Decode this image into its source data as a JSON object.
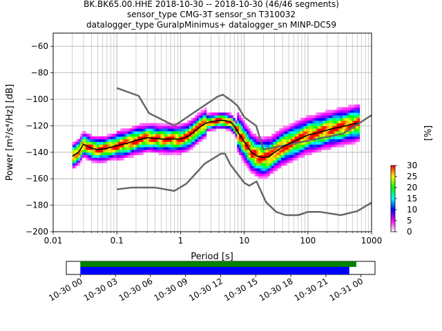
{
  "chart_data": {
    "type": "scatter",
    "title": {
      "line1": "BK.BK65.00.HHE   2018-10-30 -- 2018-10-30  (46/46 segments)",
      "line2": "sensor_type CMG-3T sensor_sn T310032",
      "line3": "datalogger_type GuralpMinimus+ datalogger_sn MINP-DC59"
    },
    "xlabel": "Period [s]",
    "ylabel": "Power [m²/s⁴/Hz] [dB]",
    "xscale": "log",
    "xlim": [
      0.01,
      1000
    ],
    "ylim": [
      -200,
      -50
    ],
    "grid": true,
    "xticks": [
      {
        "v": 0.01,
        "label": "0.01"
      },
      {
        "v": 0.1,
        "label": "0.1"
      },
      {
        "v": 1,
        "label": "1"
      },
      {
        "v": 10,
        "label": "10"
      },
      {
        "v": 100,
        "label": "100"
      },
      {
        "v": 1000,
        "label": "1000"
      }
    ],
    "yticks": [
      -60,
      -80,
      -100,
      -120,
      -140,
      -160,
      -180,
      -200
    ],
    "noise_model_high": [
      [
        0.1,
        -91.5
      ],
      [
        0.22,
        -97.4
      ],
      [
        0.32,
        -110.5
      ],
      [
        0.8,
        -120.0
      ],
      [
        3.8,
        -98.0
      ],
      [
        4.6,
        -96.5
      ],
      [
        6.3,
        -101.0
      ],
      [
        7.9,
        -105.0
      ],
      [
        10.0,
        -113.5
      ],
      [
        15.4,
        -120.0
      ],
      [
        20.0,
        -138.0
      ],
      [
        354.8,
        -126.0
      ],
      [
        1000,
        -112.0
      ]
    ],
    "noise_model_low": [
      [
        0.1,
        -168.0
      ],
      [
        0.17,
        -166.7
      ],
      [
        0.4,
        -166.7
      ],
      [
        0.8,
        -169.2
      ],
      [
        1.24,
        -163.7
      ],
      [
        2.4,
        -148.6
      ],
      [
        4.3,
        -141.1
      ],
      [
        5.0,
        -141.1
      ],
      [
        6.0,
        -149.0
      ],
      [
        10.0,
        -163.0
      ],
      [
        12.0,
        -165.3
      ],
      [
        15.6,
        -162.0
      ],
      [
        21.9,
        -177.5
      ],
      [
        31.6,
        -185.0
      ],
      [
        45.0,
        -187.5
      ],
      [
        70.0,
        -187.5
      ],
      [
        101.0,
        -185.0
      ],
      [
        154.0,
        -185.0
      ],
      [
        328.0,
        -187.5
      ],
      [
        600.0,
        -184.4
      ],
      [
        1000.0,
        -178.0
      ]
    ],
    "mean_psd": [
      [
        0.02,
        -143
      ],
      [
        0.025,
        -140
      ],
      [
        0.03,
        -134
      ],
      [
        0.04,
        -137
      ],
      [
        0.05,
        -138
      ],
      [
        0.07,
        -137
      ],
      [
        0.1,
        -135
      ],
      [
        0.15,
        -133
      ],
      [
        0.2,
        -131
      ],
      [
        0.3,
        -129
      ],
      [
        0.5,
        -130
      ],
      [
        0.8,
        -130
      ],
      [
        1.0,
        -130
      ],
      [
        1.3,
        -128
      ],
      [
        1.6,
        -125
      ],
      [
        2.0,
        -121
      ],
      [
        2.5,
        -118
      ],
      [
        3.0,
        -117
      ],
      [
        4.0,
        -116
      ],
      [
        5.0,
        -116
      ],
      [
        6.0,
        -117
      ],
      [
        7.0,
        -120
      ],
      [
        8.0,
        -125
      ],
      [
        10.0,
        -132
      ],
      [
        13.0,
        -140
      ],
      [
        16.0,
        -143
      ],
      [
        20.0,
        -144
      ],
      [
        25.0,
        -143
      ],
      [
        30.0,
        -140
      ],
      [
        40.0,
        -136
      ],
      [
        60.0,
        -132
      ],
      [
        100.0,
        -127
      ],
      [
        150.0,
        -125
      ],
      [
        250.0,
        -122
      ],
      [
        400.0,
        -120
      ],
      [
        600.0,
        -118
      ]
    ],
    "colorbar": {
      "label": "[%]",
      "range": [
        0,
        30
      ],
      "ticks": [
        0,
        5,
        10,
        15,
        20,
        25,
        30
      ],
      "colors": [
        "#ffffff",
        "#ff00ff",
        "#0000ff",
        "#00ffff",
        "#00ff00",
        "#ffff00",
        "#ff0000"
      ]
    },
    "timeline": {
      "labels": [
        "10-30 00",
        "10-30 03",
        "10-30 06",
        "10-30 09",
        "10-30 12",
        "10-30 15",
        "10-30 18",
        "10-30 21",
        "10-31 00"
      ],
      "data_coverage_hours": [
        0,
        23.6
      ],
      "processed_coverage_hours": [
        0,
        23.0
      ],
      "range_hours": [
        -1.2,
        25.2
      ],
      "colors": {
        "data": "#008000",
        "processed": "#0000ff"
      }
    },
    "colors": {
      "noise_models": "#666666",
      "mean": "#000000",
      "grid": "#b0b0b0"
    }
  }
}
